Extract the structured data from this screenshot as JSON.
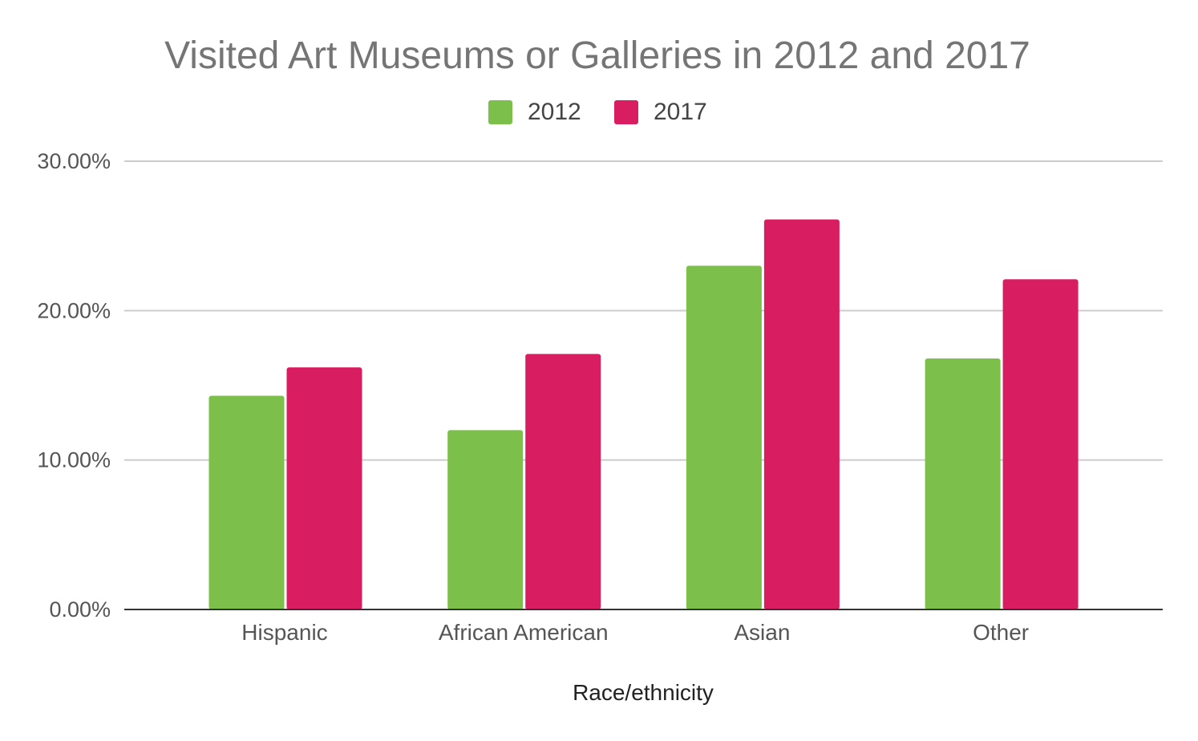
{
  "chart_data": {
    "type": "bar",
    "title": "Visited Art Museums or Galleries in 2012 and 2017",
    "xlabel": "Race/ethnicity",
    "ylabel": "",
    "categories": [
      "Hispanic",
      "African American",
      "Asian",
      "Other"
    ],
    "series": [
      {
        "name": "2012",
        "color": "#7cbf4a",
        "values": [
          14.3,
          12.0,
          23.0,
          16.8
        ]
      },
      {
        "name": "2017",
        "color": "#d81e61",
        "values": [
          16.2,
          17.1,
          26.1,
          22.1
        ]
      }
    ],
    "ylim": [
      0,
      30
    ],
    "yticks": [
      "0.00%",
      "10.00%",
      "20.00%",
      "30.00%"
    ],
    "ytick_values": [
      0,
      10,
      20,
      30
    ],
    "grid": true,
    "legend_position": "top-center"
  }
}
